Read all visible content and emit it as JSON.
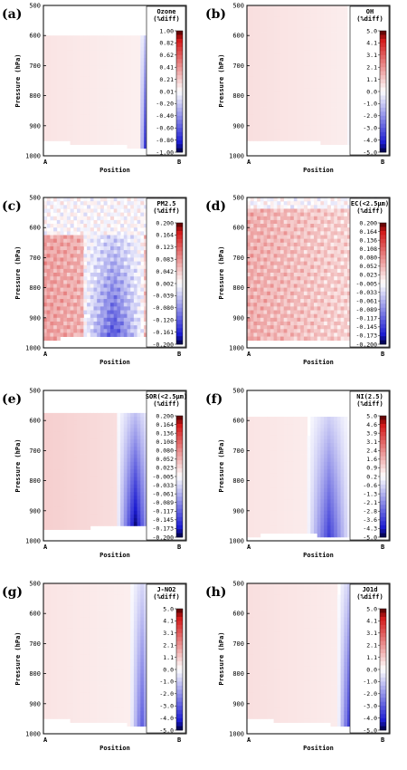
{
  "common": {
    "xlabel": "Position",
    "ylabel": "Pressure (hPa)",
    "x_start": "A",
    "x_end": "B",
    "y_ticks": [
      "500",
      "600",
      "700",
      "800",
      "900",
      "1000"
    ],
    "colors": {
      "pos": "#d21818",
      "neg": "#1a1ad0",
      "max": "#4a0000",
      "min": "#00003a"
    }
  },
  "chart_data": [
    {
      "type": "heatmap",
      "panel": "(a)",
      "colorbar_title": [
        "Ozone",
        "(%diff)"
      ],
      "colorbar_ticks": [
        "1.00",
        "0.82",
        "0.62",
        "0.41",
        "0.21",
        "0.01",
        "-0.20",
        "-0.40",
        "-0.60",
        "-0.80",
        "-1.00"
      ],
      "value_range": [
        -1.0,
        1.0
      ],
      "ylim": [
        1000,
        500
      ],
      "pattern": {
        "pos": 0.1,
        "neg": 0.85,
        "band": [
          0.72,
          0.84
        ],
        "top": 600,
        "bottom_profile": "v1"
      }
    },
    {
      "type": "heatmap",
      "panel": "(b)",
      "colorbar_title": [
        "OH",
        "(%diff)"
      ],
      "colorbar_ticks": [
        "5.0",
        "4.1",
        "3.1",
        "2.1",
        "1.1",
        "0.0",
        "-1.0",
        "-2.0",
        "-3.0",
        "-4.0",
        "-5.0"
      ],
      "value_range": [
        -5.0,
        5.0
      ],
      "ylim": [
        1000,
        500
      ],
      "pattern": {
        "pos": 0.12,
        "neg": 0.75,
        "band": [
          0.76,
          0.93
        ],
        "top": 500,
        "bottom_profile": "v2"
      }
    },
    {
      "type": "heatmap",
      "panel": "(c)",
      "colorbar_title": [
        "PM2.5",
        "(%diff)"
      ],
      "colorbar_ticks": [
        "0.200",
        "0.164",
        "0.123",
        "0.083",
        "0.042",
        "0.002",
        "-0.039",
        "-0.080",
        "-0.120",
        "-0.161",
        "-0.200"
      ],
      "value_range": [
        -0.2,
        0.2
      ],
      "ylim": [
        1000,
        500
      ],
      "pattern": {
        "pos": 0.35,
        "neg": 0.55,
        "band": [
          0.3,
          0.75
        ],
        "top": 620,
        "bottom_profile": "blob"
      }
    },
    {
      "type": "heatmap",
      "panel": "(d)",
      "colorbar_title": [
        "EC(<2.5µm)",
        "(%diff)"
      ],
      "colorbar_ticks": [
        "0.200",
        "0.164",
        "0.136",
        "0.108",
        "0.080",
        "0.052",
        "0.023",
        "-0.005",
        "-0.033",
        "-0.061",
        "-0.089",
        "-0.117",
        "-0.145",
        "-0.173",
        "-0.200"
      ],
      "value_range": [
        -0.2,
        0.2
      ],
      "ylim": [
        1000,
        500
      ],
      "pattern": {
        "pos": 0.3,
        "neg": 0.45,
        "band": [
          0.78,
          0.86
        ],
        "top": 540,
        "bottom_profile": "noisy"
      }
    },
    {
      "type": "heatmap",
      "panel": "(e)",
      "colorbar_title": [
        "SOR(<2.5µm)",
        "(%diff)"
      ],
      "colorbar_ticks": [
        "0.200",
        "0.164",
        "0.136",
        "0.108",
        "0.080",
        "0.052",
        "0.023",
        "-0.005",
        "-0.033",
        "-0.061",
        "-0.089",
        "-0.117",
        "-0.145",
        "-0.173",
        "-0.200"
      ],
      "value_range": [
        -0.2,
        0.2
      ],
      "ylim": [
        1000,
        500
      ],
      "pattern": {
        "pos": 0.18,
        "neg": 0.8,
        "band": [
          0.55,
          0.82
        ],
        "top": 580,
        "bottom_profile": "v3"
      }
    },
    {
      "type": "heatmap",
      "panel": "(f)",
      "colorbar_title": [
        "NI(2.5)",
        "(%diff)"
      ],
      "colorbar_ticks": [
        "5.0",
        "4.6",
        "3.9",
        "3.1",
        "2.4",
        "1.6",
        "0.9",
        "0.2",
        "-0.6",
        "-1.3",
        "-2.1",
        "-2.8",
        "-3.6",
        "-4.3",
        "-5.0"
      ],
      "value_range": [
        -5.0,
        5.0
      ],
      "ylim": [
        1000,
        500
      ],
      "pattern": {
        "pos": 0.1,
        "neg": 0.6,
        "band": [
          0.45,
          0.78
        ],
        "top": 590,
        "bottom_profile": "v4"
      }
    },
    {
      "type": "heatmap",
      "panel": "(g)",
      "colorbar_title": [
        "J-NO2",
        "(%diff)"
      ],
      "colorbar_ticks": [
        "5.0",
        "4.1",
        "3.1",
        "2.1",
        "1.1",
        "0.0",
        "-1.0",
        "-2.0",
        "-3.0",
        "-4.0",
        "-5.0"
      ],
      "value_range": [
        -5.0,
        5.0
      ],
      "ylim": [
        1000,
        500
      ],
      "pattern": {
        "pos": 0.1,
        "neg": 0.5,
        "band": [
          0.65,
          0.82
        ],
        "top": 500,
        "bottom_profile": "v1"
      }
    },
    {
      "type": "heatmap",
      "panel": "(h)",
      "colorbar_title": [
        "JO1d",
        "(%diff)"
      ],
      "colorbar_ticks": [
        "5.0",
        "4.1",
        "3.1",
        "2.1",
        "1.1",
        "0.0",
        "-1.0",
        "-2.0",
        "-3.0",
        "-4.0",
        "-5.0"
      ],
      "value_range": [
        -5.0,
        5.0
      ],
      "ylim": [
        1000,
        500
      ],
      "pattern": {
        "pos": 0.12,
        "neg": 0.6,
        "band": [
          0.68,
          0.85
        ],
        "top": 500,
        "bottom_profile": "v1"
      }
    }
  ]
}
